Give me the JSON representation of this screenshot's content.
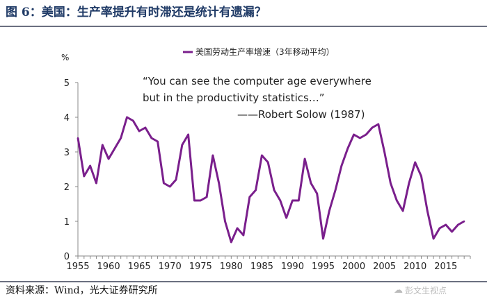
{
  "title": "图 6：美国：生产率提升有时滞还是统计有遗漏？",
  "source": "资料来源：Wind，光大证券研究所",
  "watermark": "彭文生视点",
  "colors": {
    "title": "#1f3a66",
    "series": "#7a1f8c",
    "axis": "#888888"
  },
  "chart_data": {
    "type": "line",
    "title": "",
    "ylabel": "%",
    "xlabel": "",
    "ylim": [
      0,
      5
    ],
    "xlim": [
      1955,
      2019
    ],
    "xticks": [
      1955,
      1960,
      1965,
      1970,
      1975,
      1980,
      1985,
      1990,
      1995,
      2000,
      2005,
      2010,
      2015
    ],
    "yticks": [
      0,
      1,
      2,
      3,
      4,
      5
    ],
    "grid": false,
    "legend_position": "top",
    "quote": [
      "“You can see the computer age everywhere",
      "but in the productivity statistics…”",
      "——Robert Solow (1987)"
    ],
    "series": [
      {
        "name": "美国劳动生产率增速（3年移动平均）",
        "x": [
          1955,
          1956,
          1957,
          1958,
          1959,
          1960,
          1961,
          1962,
          1963,
          1964,
          1965,
          1966,
          1967,
          1968,
          1969,
          1970,
          1971,
          1972,
          1973,
          1974,
          1975,
          1976,
          1977,
          1978,
          1979,
          1980,
          1981,
          1982,
          1983,
          1984,
          1985,
          1986,
          1987,
          1988,
          1989,
          1990,
          1991,
          1992,
          1993,
          1994,
          1995,
          1996,
          1997,
          1998,
          1999,
          2000,
          2001,
          2002,
          2003,
          2004,
          2005,
          2006,
          2007,
          2008,
          2009,
          2010,
          2011,
          2012,
          2013,
          2014,
          2015,
          2016,
          2017,
          2018
        ],
        "values": [
          3.4,
          2.3,
          2.6,
          2.1,
          3.2,
          2.8,
          3.1,
          3.4,
          4.0,
          3.9,
          3.6,
          3.7,
          3.4,
          3.3,
          2.1,
          2.0,
          2.2,
          3.2,
          3.5,
          1.6,
          1.6,
          1.7,
          2.9,
          2.1,
          1.0,
          0.4,
          0.8,
          0.6,
          1.7,
          1.9,
          2.9,
          2.7,
          1.9,
          1.6,
          1.1,
          1.6,
          1.6,
          2.8,
          2.1,
          1.8,
          0.5,
          1.3,
          1.9,
          2.6,
          3.1,
          3.5,
          3.4,
          3.5,
          3.7,
          3.8,
          3.0,
          2.1,
          1.6,
          1.3,
          2.1,
          2.7,
          2.3,
          1.3,
          0.5,
          0.8,
          0.9,
          0.7,
          0.9,
          1.0
        ]
      }
    ]
  }
}
